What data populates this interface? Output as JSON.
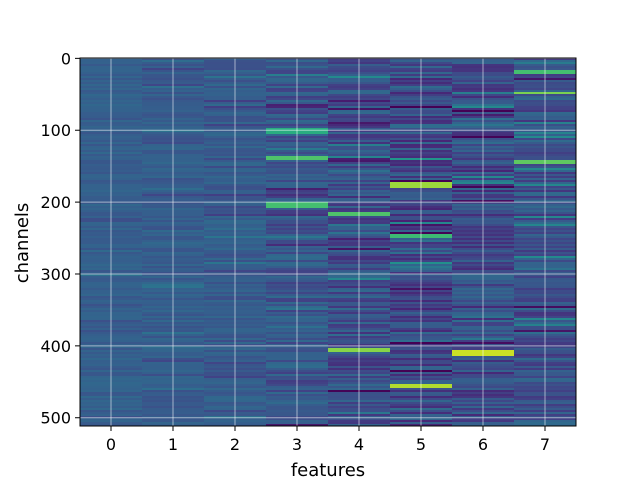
{
  "chart_data": {
    "type": "heatmap",
    "title": "",
    "xlabel": "features",
    "ylabel": "channels",
    "x_ticks": [
      0,
      1,
      2,
      3,
      4,
      5,
      6,
      7
    ],
    "y_ticks": [
      0,
      100,
      200,
      300,
      400,
      500
    ],
    "n_features": 8,
    "n_channels": 512,
    "xlim": [
      -0.5,
      7.5
    ],
    "ylim": [
      511.5,
      -0.5
    ],
    "y_axis_inverted": true,
    "grid": true,
    "colormap": "viridis",
    "column_base_value": [
      0.3,
      0.29,
      0.29,
      0.26,
      0.24,
      0.23,
      0.22,
      0.25
    ],
    "column_variation": [
      0.05,
      0.06,
      0.07,
      0.12,
      0.15,
      0.18,
      0.16,
      0.14
    ],
    "highlights": [
      {
        "feature": 3,
        "channel_range": [
          98,
          104
        ],
        "value": 0.62
      },
      {
        "feature": 3,
        "channel_range": [
          138,
          141
        ],
        "value": 0.72
      },
      {
        "feature": 3,
        "channel_range": [
          203,
          206
        ],
        "value": 0.7
      },
      {
        "feature": 4,
        "channel_range": [
          216,
          219
        ],
        "value": 0.72
      },
      {
        "feature": 4,
        "channel_range": [
          405,
          408
        ],
        "value": 0.82
      },
      {
        "feature": 5,
        "channel_range": [
          175,
          180
        ],
        "value": 0.85
      },
      {
        "feature": 5,
        "channel_range": [
          245,
          248
        ],
        "value": 0.68
      },
      {
        "feature": 5,
        "channel_range": [
          455,
          458
        ],
        "value": 0.88
      },
      {
        "feature": 6,
        "channel_range": [
          407,
          412
        ],
        "value": 0.92
      },
      {
        "feature": 7,
        "channel_range": [
          18,
          20
        ],
        "value": 0.7
      },
      {
        "feature": 7,
        "channel_range": [
          48,
          50
        ],
        "value": 0.8
      },
      {
        "feature": 7,
        "channel_range": [
          143,
          145
        ],
        "value": 0.75
      }
    ]
  }
}
